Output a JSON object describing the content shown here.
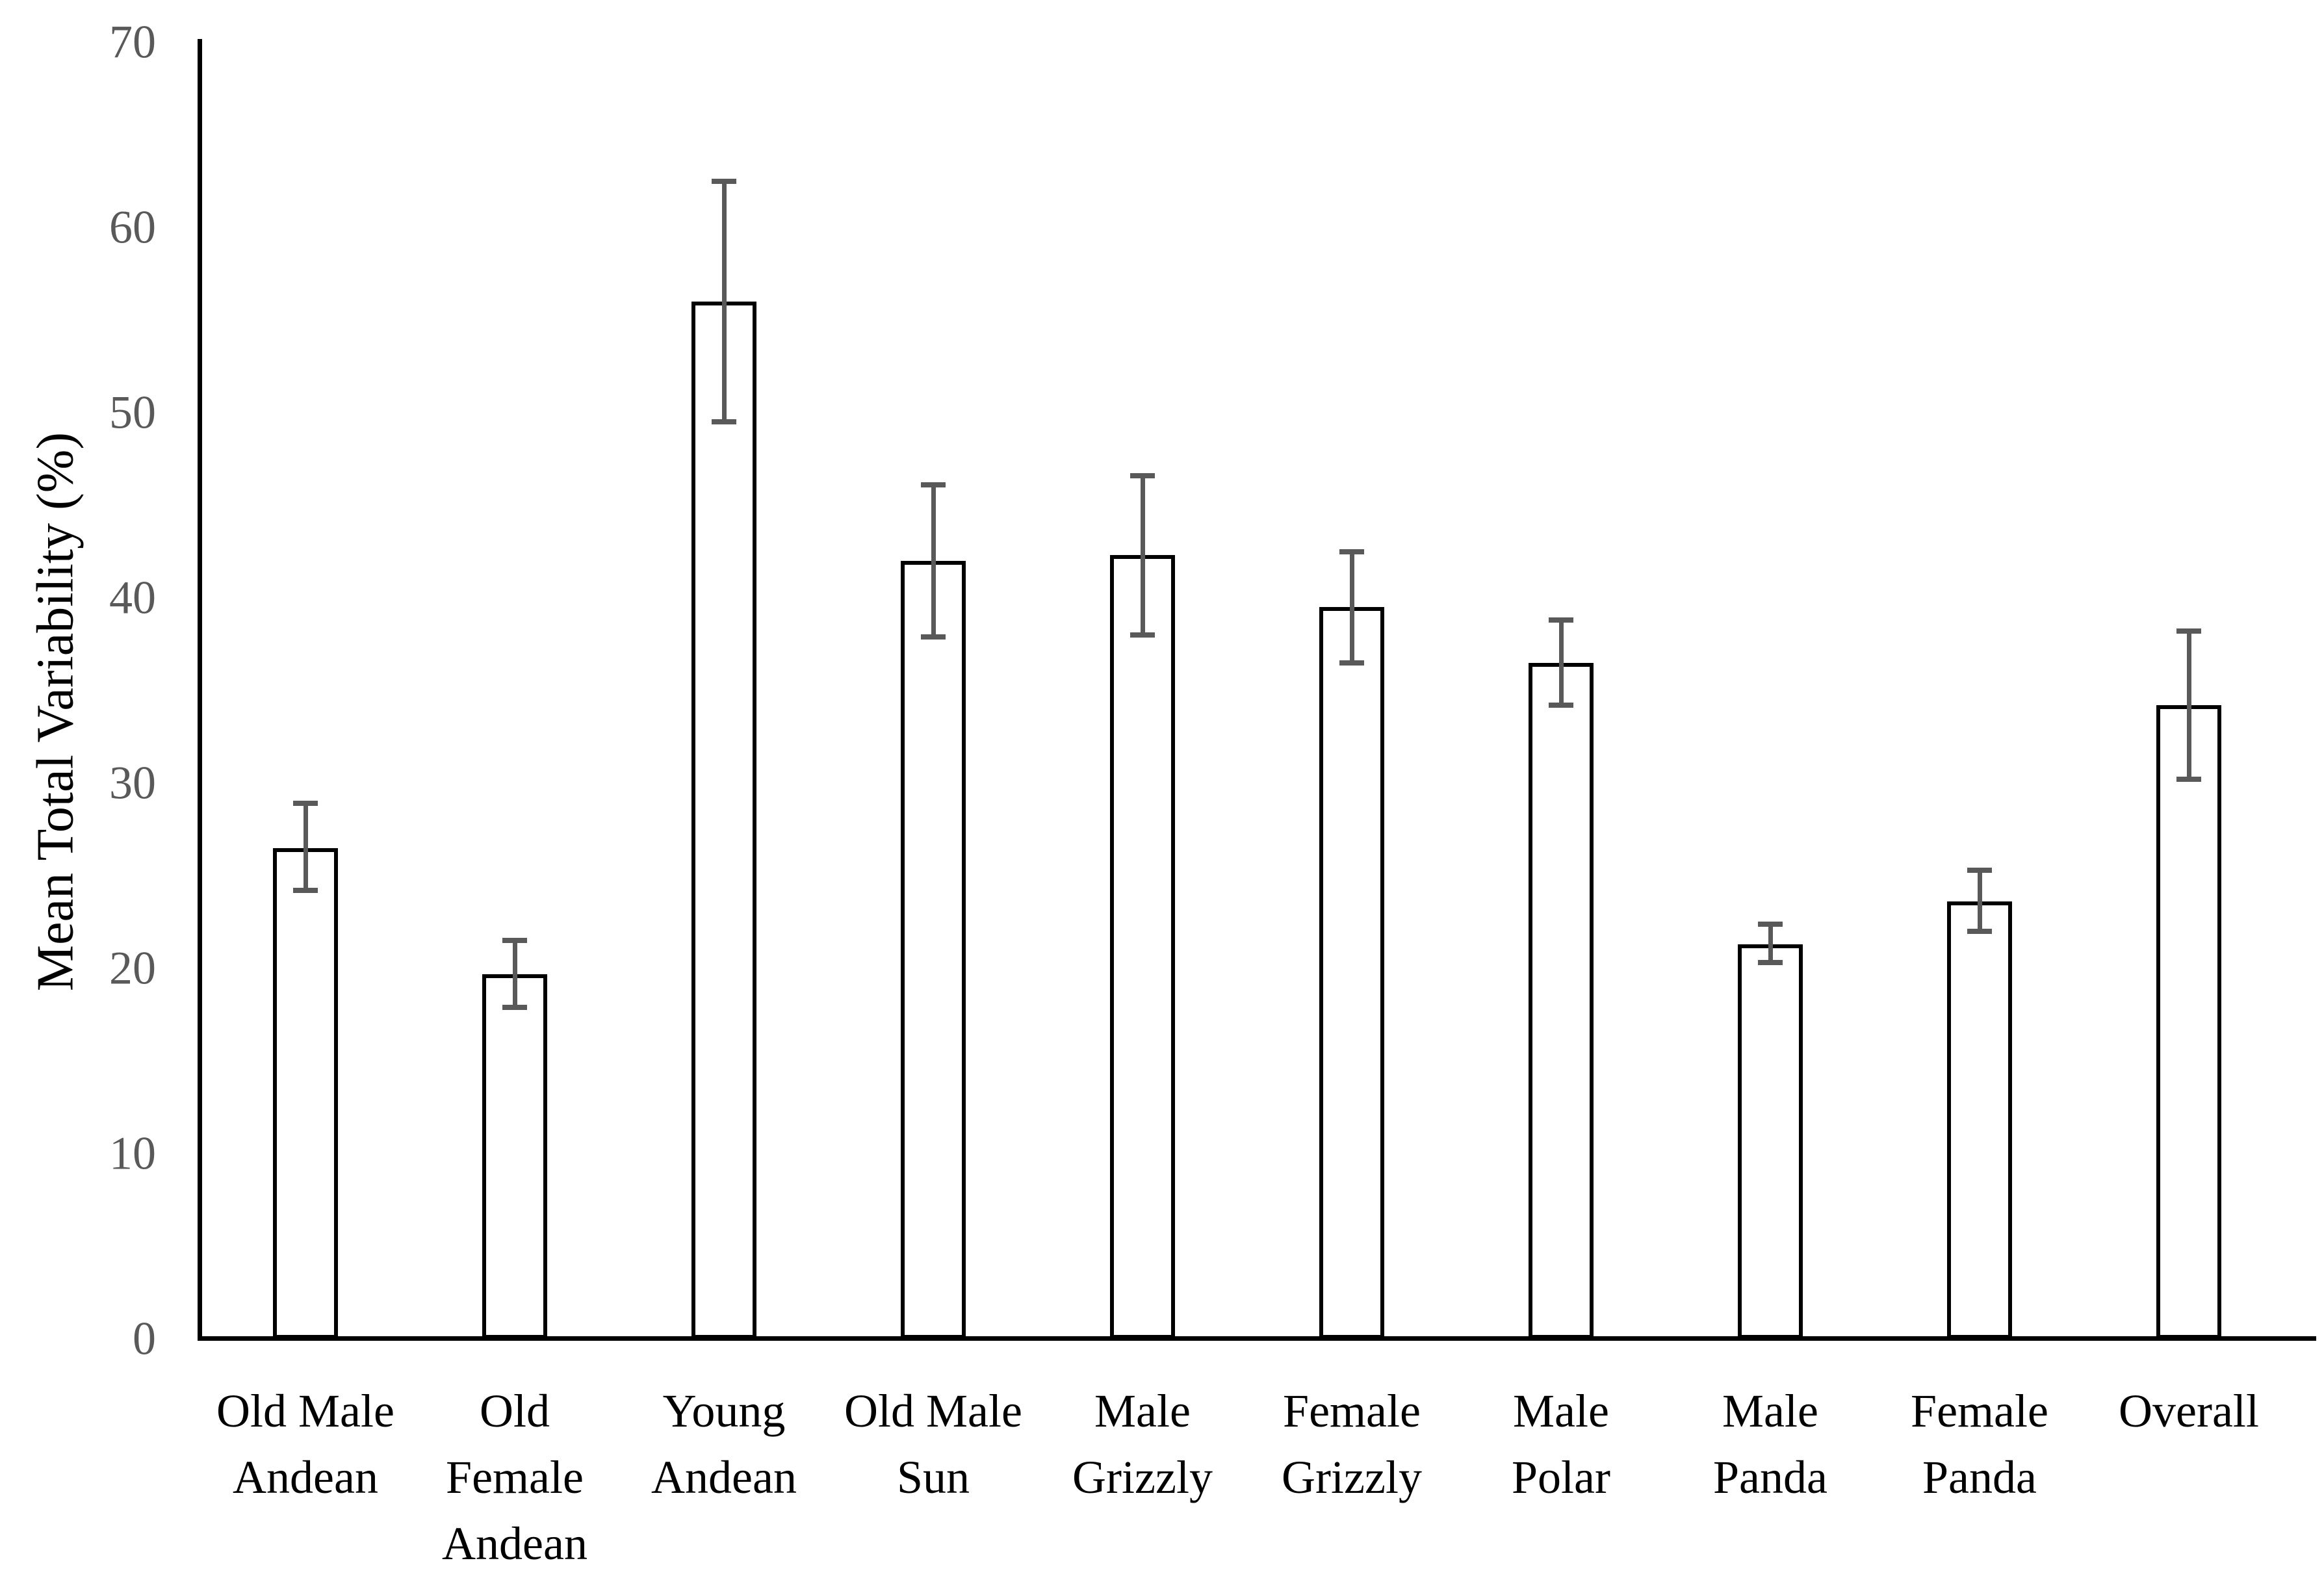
{
  "chart_data": {
    "type": "bar",
    "title": "",
    "xlabel": "",
    "ylabel": "Mean Total Variability (%)",
    "ylim": [
      0,
      70
    ],
    "yticks": [
      0,
      10,
      20,
      30,
      40,
      50,
      60,
      70
    ],
    "grid": false,
    "legend": "none",
    "bar_fill": "#ffffff",
    "bar_border_color": "#000000",
    "error_bar_color": "#595959",
    "axis_color": "#000000",
    "tick_label_color": "#595959",
    "categories": [
      "Old Male Andean",
      "Old Female Andean",
      "Young Andean",
      "Old Male Sun",
      "Male Grizzly",
      "Female Grizzly",
      "Male Polar",
      "Male Panda",
      "Female Panda",
      "Overall"
    ],
    "category_label_lines": [
      [
        "Old Male",
        "Andean"
      ],
      [
        "Old",
        "Female",
        "Andean"
      ],
      [
        "Young",
        "Andean"
      ],
      [
        "Old Male",
        "Sun"
      ],
      [
        "Male",
        "Grizzly"
      ],
      [
        "Female",
        "Grizzly"
      ],
      [
        "Male",
        "Polar"
      ],
      [
        "Male",
        "Panda"
      ],
      [
        "Female",
        "Panda"
      ],
      [
        "Overall"
      ]
    ],
    "values": [
      26.5,
      19.7,
      56.0,
      42.0,
      42.3,
      39.5,
      36.5,
      21.3,
      23.6,
      34.2
    ],
    "error_min": [
      24.2,
      17.9,
      49.5,
      37.9,
      38.0,
      36.5,
      34.2,
      20.3,
      22.0,
      30.2
    ],
    "error_max": [
      28.9,
      21.5,
      62.5,
      46.1,
      46.6,
      42.5,
      38.8,
      22.4,
      25.3,
      38.2
    ]
  }
}
